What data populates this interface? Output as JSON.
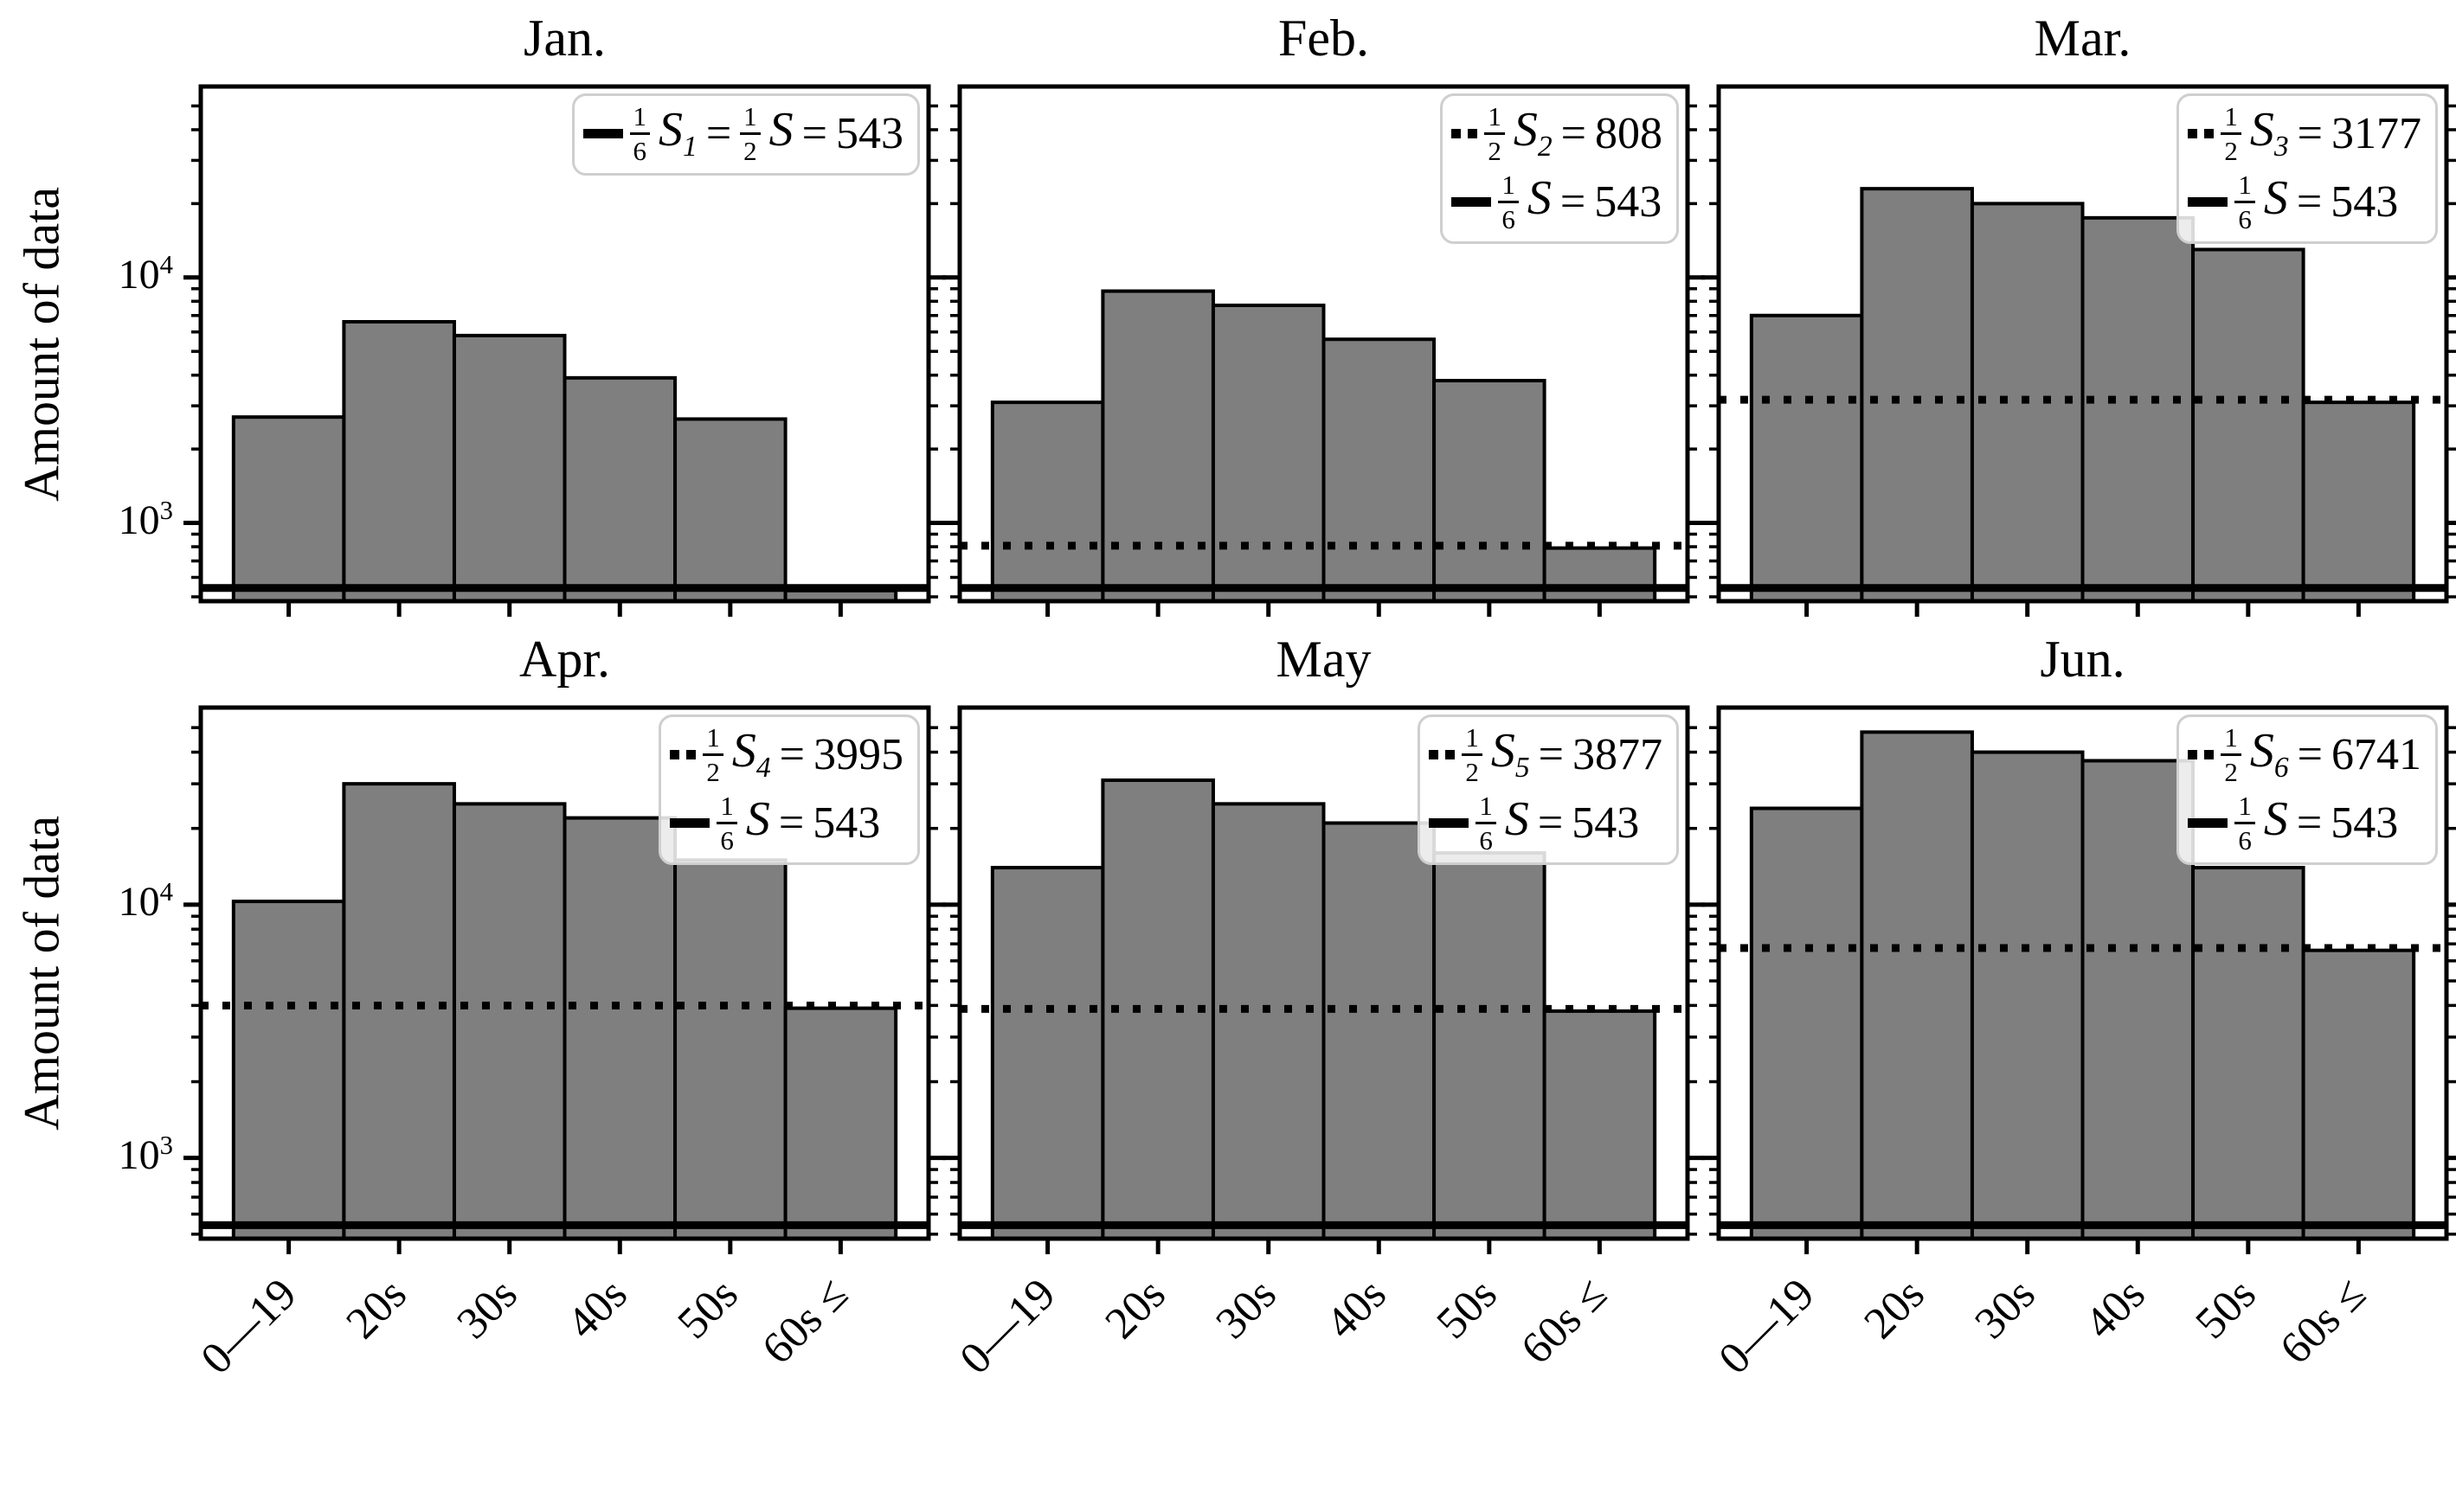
{
  "figure": {
    "ylabel": "Amount of data",
    "eq": "=",
    "background": "#ffffff",
    "bar_fill": "#7f7f7f",
    "edge": "#000000",
    "legend_border": "#cfcfcf",
    "ytick_labels": [
      {
        "base": "10",
        "exp": "4"
      },
      {
        "base": "10",
        "exp": "3"
      }
    ],
    "legends": [
      [
        {
          "marker": "solid",
          "terms": [
            {
              "num": "1",
              "den": "6",
              "sym": "S",
              "sub": "1"
            },
            {
              "num": "1",
              "den": "2",
              "sym": "S",
              "sub": ""
            }
          ],
          "value": "543"
        }
      ],
      [
        {
          "marker": "dotted",
          "terms": [
            {
              "num": "1",
              "den": "2",
              "sym": "S",
              "sub": "2"
            }
          ],
          "value": "808"
        },
        {
          "marker": "solid",
          "terms": [
            {
              "num": "1",
              "den": "6",
              "sym": "S",
              "sub": ""
            }
          ],
          "value": "543"
        }
      ],
      [
        {
          "marker": "dotted",
          "terms": [
            {
              "num": "1",
              "den": "2",
              "sym": "S",
              "sub": "3"
            }
          ],
          "value": "3177"
        },
        {
          "marker": "solid",
          "terms": [
            {
              "num": "1",
              "den": "6",
              "sym": "S",
              "sub": ""
            }
          ],
          "value": "543"
        }
      ],
      [
        {
          "marker": "dotted",
          "terms": [
            {
              "num": "1",
              "den": "2",
              "sym": "S",
              "sub": "4"
            }
          ],
          "value": "3995"
        },
        {
          "marker": "solid",
          "terms": [
            {
              "num": "1",
              "den": "6",
              "sym": "S",
              "sub": ""
            }
          ],
          "value": "543"
        }
      ],
      [
        {
          "marker": "dotted",
          "terms": [
            {
              "num": "1",
              "den": "2",
              "sym": "S",
              "sub": "5"
            }
          ],
          "value": "3877"
        },
        {
          "marker": "solid",
          "terms": [
            {
              "num": "1",
              "den": "6",
              "sym": "S",
              "sub": ""
            }
          ],
          "value": "543"
        }
      ],
      [
        {
          "marker": "dotted",
          "terms": [
            {
              "num": "1",
              "den": "2",
              "sym": "S",
              "sub": "6"
            }
          ],
          "value": "6741"
        },
        {
          "marker": "solid",
          "terms": [
            {
              "num": "1",
              "den": "6",
              "sym": "S",
              "sub": ""
            }
          ],
          "value": "543"
        }
      ]
    ]
  },
  "chart_data": {
    "type": "bar",
    "subtype": "histogram-grid",
    "grid": "2 rows x 3 cols",
    "yscale": "log",
    "ylim": [
      480,
      60000
    ],
    "ylabel": "Amount of data",
    "xlabel": "",
    "legend_position": "upper right",
    "grid_lines": "off",
    "bar_color": "#7f7f7f",
    "edge_color": "#000000",
    "yticks_major": [
      10000,
      1000
    ],
    "ytick_labels": [
      "10^4",
      "10^3"
    ],
    "categories": [
      "0—19",
      "20s",
      "30s",
      "40s",
      "50s",
      "60s ≤"
    ],
    "series": [
      {
        "name": "Jan.",
        "values": [
          2700,
          6600,
          5800,
          3900,
          2650,
          530
        ],
        "hlines": [
          {
            "style": "solid",
            "y": 543,
            "label": "1/6 S_1 = 1/2 S = 543"
          }
        ]
      },
      {
        "name": "Feb.",
        "values": [
          3100,
          8800,
          7700,
          5600,
          3800,
          790
        ],
        "hlines": [
          {
            "style": "dotted",
            "y": 808,
            "label": "1/2 S_2 = 808"
          },
          {
            "style": "solid",
            "y": 543,
            "label": "1/6 S = 543"
          }
        ]
      },
      {
        "name": "Mar.",
        "values": [
          7000,
          23000,
          20000,
          17500,
          13000,
          3100
        ],
        "hlines": [
          {
            "style": "dotted",
            "y": 3177,
            "label": "1/2 S_3 = 3177"
          },
          {
            "style": "solid",
            "y": 543,
            "label": "1/6 S = 543"
          }
        ]
      },
      {
        "name": "Apr.",
        "values": [
          10300,
          30000,
          25000,
          22000,
          15000,
          3900
        ],
        "hlines": [
          {
            "style": "dotted",
            "y": 3995,
            "label": "1/2 S_4 = 3995"
          },
          {
            "style": "solid",
            "y": 543,
            "label": "1/6 S = 543"
          }
        ]
      },
      {
        "name": "May",
        "values": [
          14000,
          31000,
          25000,
          21000,
          16000,
          3800
        ],
        "hlines": [
          {
            "style": "dotted",
            "y": 3877,
            "label": "1/2 S_5 = 3877"
          },
          {
            "style": "solid",
            "y": 543,
            "label": "1/6 S = 543"
          }
        ]
      },
      {
        "name": "Jun.",
        "values": [
          24000,
          48000,
          40000,
          37000,
          14000,
          6600
        ],
        "hlines": [
          {
            "style": "dotted",
            "y": 6741,
            "label": "1/2 S_6 = 6741"
          },
          {
            "style": "solid",
            "y": 543,
            "label": "1/6 S = 543"
          }
        ]
      }
    ]
  }
}
